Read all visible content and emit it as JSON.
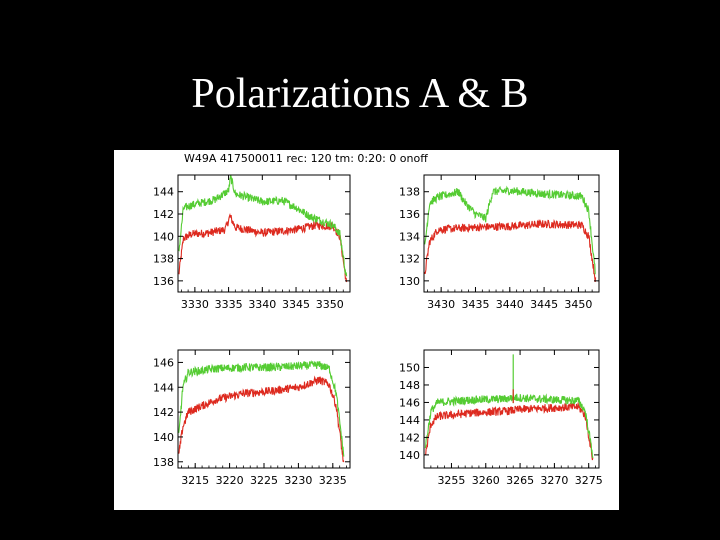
{
  "slide": {
    "title": "Polarizations A & B"
  },
  "figure": {
    "header": "W49A  417500011  rec:  120  tm:  0:20:  0  onoff"
  },
  "colors": {
    "polA": "#dd2a1f",
    "polB": "#55cc33",
    "frame": "#000000"
  },
  "chart_data": [
    {
      "type": "line",
      "panel": "top-left",
      "xlim": [
        3327.5,
        3353
      ],
      "ylim": [
        135,
        145.5
      ],
      "xticks": [
        "3330",
        "3335",
        "3340",
        "3345",
        "3350"
      ],
      "yticks": [
        "136",
        "138",
        "140",
        "142",
        "144"
      ],
      "series": [
        {
          "color": "red",
          "x": [
            3327.6,
            3328.3,
            3329.5,
            3332,
            3334.5,
            3335.2,
            3336,
            3340,
            3345,
            3348,
            3350.5,
            3351.5,
            3352.5
          ],
          "y": [
            136.5,
            139.8,
            140.2,
            140.3,
            140.6,
            141.8,
            140.8,
            140.3,
            140.6,
            141.0,
            140.9,
            140.0,
            135.7
          ]
        },
        {
          "color": "green",
          "x": [
            3327.6,
            3328.3,
            3329.5,
            3333,
            3335.0,
            3335.3,
            3336,
            3340,
            3343,
            3345,
            3347,
            3350.5,
            3351.5,
            3352.5
          ],
          "y": [
            138.5,
            142.5,
            142.8,
            143.3,
            144.1,
            145.3,
            143.8,
            143.1,
            143.2,
            142.6,
            141.8,
            141.0,
            140.2,
            136.2
          ]
        }
      ]
    },
    {
      "type": "line",
      "panel": "top-right",
      "xlim": [
        3427.5,
        3453
      ],
      "ylim": [
        129,
        139.5
      ],
      "xticks": [
        "3430",
        "3435",
        "3440",
        "3445",
        "3450"
      ],
      "yticks": [
        "130",
        "132",
        "134",
        "136",
        "138"
      ],
      "series": [
        {
          "color": "red",
          "x": [
            3427.6,
            3428.3,
            3429.5,
            3435,
            3440,
            3445,
            3450.5,
            3451.5,
            3452.5
          ],
          "y": [
            130.5,
            133.5,
            134.6,
            134.8,
            134.9,
            135.1,
            135.0,
            134.0,
            130.0
          ]
        },
        {
          "color": "green",
          "x": [
            3427.6,
            3428.3,
            3429.5,
            3432.5,
            3433.5,
            3435,
            3436.5,
            3437.5,
            3440,
            3445,
            3450.5,
            3451.5,
            3452.5
          ],
          "y": [
            133.0,
            137.0,
            137.5,
            138.0,
            137.0,
            136.0,
            135.6,
            138.0,
            138.1,
            137.8,
            137.6,
            136.3,
            130.5
          ]
        }
      ]
    },
    {
      "type": "line",
      "panel": "bottom-left",
      "xlim": [
        3212.5,
        3237.5
      ],
      "ylim": [
        137.5,
        147
      ],
      "xticks": [
        "3215",
        "3220",
        "3225",
        "3230",
        "3235"
      ],
      "yticks": [
        "138",
        "140",
        "142",
        "144",
        "146"
      ],
      "series": [
        {
          "color": "red",
          "x": [
            3212.6,
            3213.2,
            3214,
            3218,
            3222,
            3226,
            3230,
            3233,
            3234.5,
            3235.5,
            3236.6
          ],
          "y": [
            138.5,
            140.8,
            142.0,
            143.0,
            143.5,
            143.7,
            144.0,
            144.6,
            144.2,
            142.5,
            137.8
          ]
        },
        {
          "color": "green",
          "x": [
            3212.6,
            3213.2,
            3214,
            3218,
            3222,
            3226,
            3230,
            3233,
            3234.5,
            3235.5,
            3236.6
          ],
          "y": [
            140.0,
            144.0,
            145.2,
            145.5,
            145.6,
            145.6,
            145.7,
            145.8,
            145.5,
            143.5,
            138.5
          ]
        }
      ]
    },
    {
      "type": "line",
      "panel": "bottom-right",
      "xlim": [
        3251,
        3276.5
      ],
      "ylim": [
        138.5,
        152
      ],
      "xticks": [
        "3255",
        "3260",
        "3265",
        "3270",
        "3275"
      ],
      "yticks": [
        "140",
        "142",
        "144",
        "146",
        "148",
        "150"
      ],
      "series": [
        {
          "color": "red",
          "x": [
            3251.2,
            3252,
            3253,
            3258,
            3263,
            3265,
            3270,
            3273.5,
            3274.5,
            3275.6
          ],
          "y": [
            140.0,
            143.5,
            144.4,
            144.8,
            145.0,
            145.2,
            145.4,
            145.5,
            144.5,
            139.5
          ]
        },
        {
          "color": "green",
          "x": [
            3251.2,
            3252,
            3253,
            3258,
            3263,
            3264.0,
            3265.5,
            3270,
            3273.5,
            3274.5,
            3275.6
          ],
          "y": [
            141.0,
            145.0,
            146.0,
            146.3,
            146.4,
            146.6,
            146.5,
            146.3,
            146.2,
            145.0,
            140.0
          ]
        }
      ],
      "spikes": [
        {
          "color": "green",
          "x": 3264.0,
          "y": 151.5
        },
        {
          "color": "red",
          "x": 3264.0,
          "y": 147.5
        }
      ]
    }
  ]
}
